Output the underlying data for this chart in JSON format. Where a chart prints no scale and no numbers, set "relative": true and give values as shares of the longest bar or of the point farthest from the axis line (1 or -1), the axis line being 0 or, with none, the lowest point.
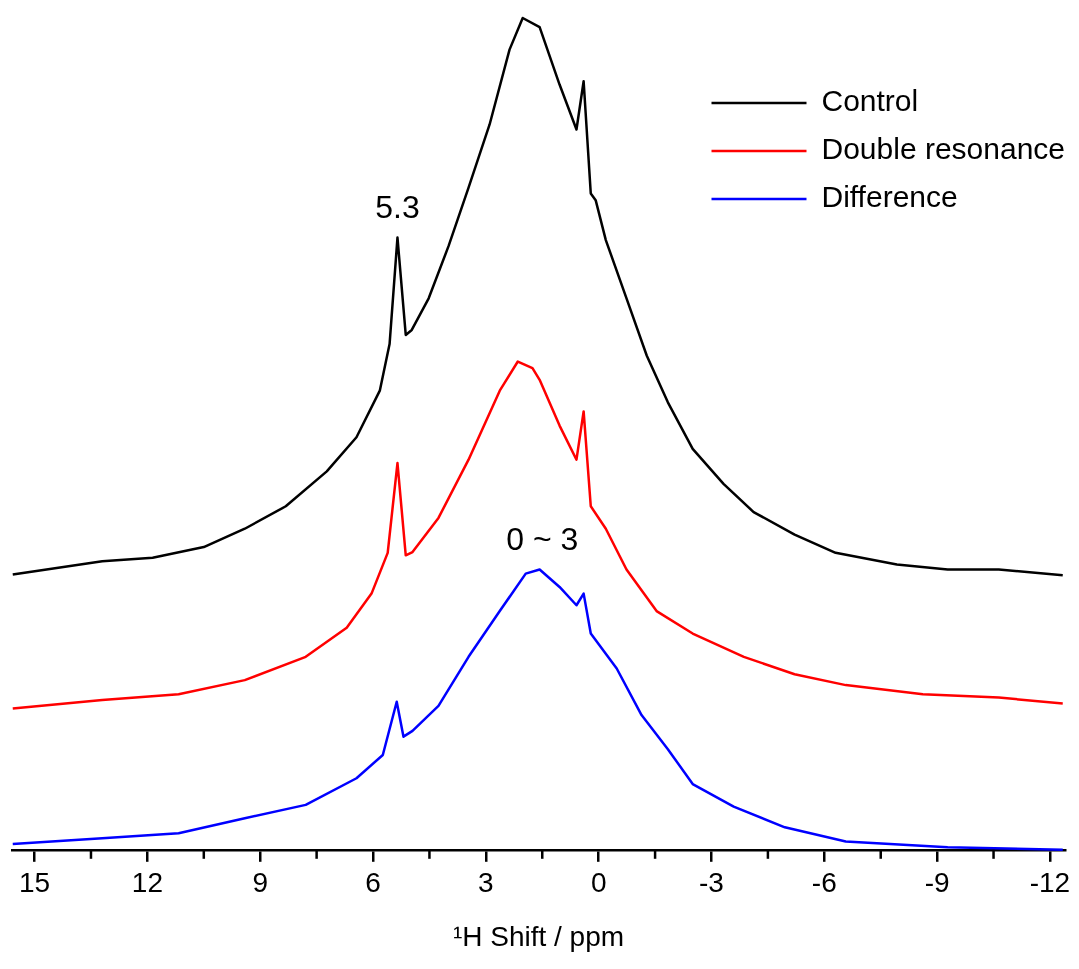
{
  "chart_data": {
    "type": "line",
    "relative": true,
    "xlabel": "¹H Shift / ppm",
    "xlim": [
      15.6,
      -12.4
    ],
    "xticks": [
      15,
      {
        "value": 13.5,
        "label": null
      },
      12,
      {
        "value": 10.5,
        "label": null
      },
      9,
      {
        "value": 7.5,
        "label": null
      },
      6,
      {
        "value": 4.5,
        "label": null
      },
      3,
      {
        "value": 1.5,
        "label": null
      },
      0,
      {
        "value": -1.5,
        "label": null
      },
      -3,
      {
        "value": -4.5,
        "label": null
      },
      -6,
      {
        "value": -7.5,
        "label": null
      },
      -9,
      {
        "value": -10.5,
        "label": null
      },
      -12
    ],
    "tick_labels": "x",
    "grid": false,
    "legend": "top right",
    "marker": "none",
    "line_style": "solid",
    "annotations": [
      {
        "text": "5.3",
        "x": 5.35,
        "y": 0.736
      },
      {
        "text": "0 ~ 3",
        "x": 1.5,
        "y": 0.337
      }
    ],
    "series": [
      {
        "name": "Control",
        "color": "#000000",
        "x": [
          15.58,
          13.2,
          11.86,
          10.5,
          9.41,
          8.32,
          7.23,
          6.44,
          5.82,
          5.56,
          5.35,
          5.13,
          4.97,
          4.52,
          3.99,
          3.46,
          2.9,
          2.37,
          2.02,
          1.57,
          1.04,
          0.59,
          0.4,
          0.21,
          0.08,
          -0.19,
          -0.74,
          -1.28,
          -1.84,
          -2.5,
          -3.32,
          -4.12,
          -5.21,
          -6.3,
          -7.93,
          -9.28,
          -10.64,
          -12.34
        ],
        "values": [
          0.331,
          0.347,
          0.351,
          0.364,
          0.386,
          0.413,
          0.455,
          0.496,
          0.552,
          0.608,
          0.736,
          0.619,
          0.625,
          0.663,
          0.726,
          0.796,
          0.872,
          0.962,
          1.0,
          0.989,
          0.92,
          0.866,
          0.924,
          0.789,
          0.781,
          0.733,
          0.663,
          0.594,
          0.538,
          0.482,
          0.44,
          0.406,
          0.379,
          0.357,
          0.343,
          0.337,
          0.337,
          0.33
        ]
      },
      {
        "name": "Double resonance",
        "color": "#ff0000",
        "x": [
          15.58,
          13.2,
          11.17,
          9.41,
          7.79,
          6.7,
          6.04,
          5.61,
          5.35,
          5.13,
          4.95,
          4.26,
          3.46,
          2.63,
          2.15,
          1.76,
          1.57,
          1.04,
          0.59,
          0.4,
          0.21,
          -0.19,
          -0.74,
          -1.54,
          -2.5,
          -3.86,
          -5.21,
          -6.57,
          -8.62,
          -10.64,
          -12.34
        ],
        "values": [
          0.17,
          0.18,
          0.187,
          0.204,
          0.232,
          0.267,
          0.308,
          0.357,
          0.465,
          0.354,
          0.358,
          0.399,
          0.469,
          0.552,
          0.587,
          0.579,
          0.565,
          0.51,
          0.469,
          0.527,
          0.413,
          0.386,
          0.337,
          0.287,
          0.26,
          0.232,
          0.211,
          0.198,
          0.187,
          0.183,
          0.176
        ]
      },
      {
        "name": "Difference",
        "color": "#0000ff",
        "x": [
          15.58,
          13.2,
          11.17,
          9.41,
          7.79,
          6.44,
          5.74,
          5.37,
          5.19,
          4.95,
          4.26,
          3.46,
          2.63,
          1.94,
          1.57,
          1.04,
          0.59,
          0.4,
          0.21,
          -0.48,
          -1.14,
          -1.84,
          -2.5,
          -3.59,
          -4.95,
          -6.57,
          -9.28,
          -12.34
        ],
        "values": [
          0.007,
          0.014,
          0.02,
          0.038,
          0.054,
          0.086,
          0.114,
          0.178,
          0.136,
          0.143,
          0.173,
          0.232,
          0.287,
          0.332,
          0.337,
          0.316,
          0.294,
          0.308,
          0.26,
          0.218,
          0.162,
          0.121,
          0.079,
          0.052,
          0.027,
          0.01,
          0.003,
          0
        ]
      }
    ]
  }
}
